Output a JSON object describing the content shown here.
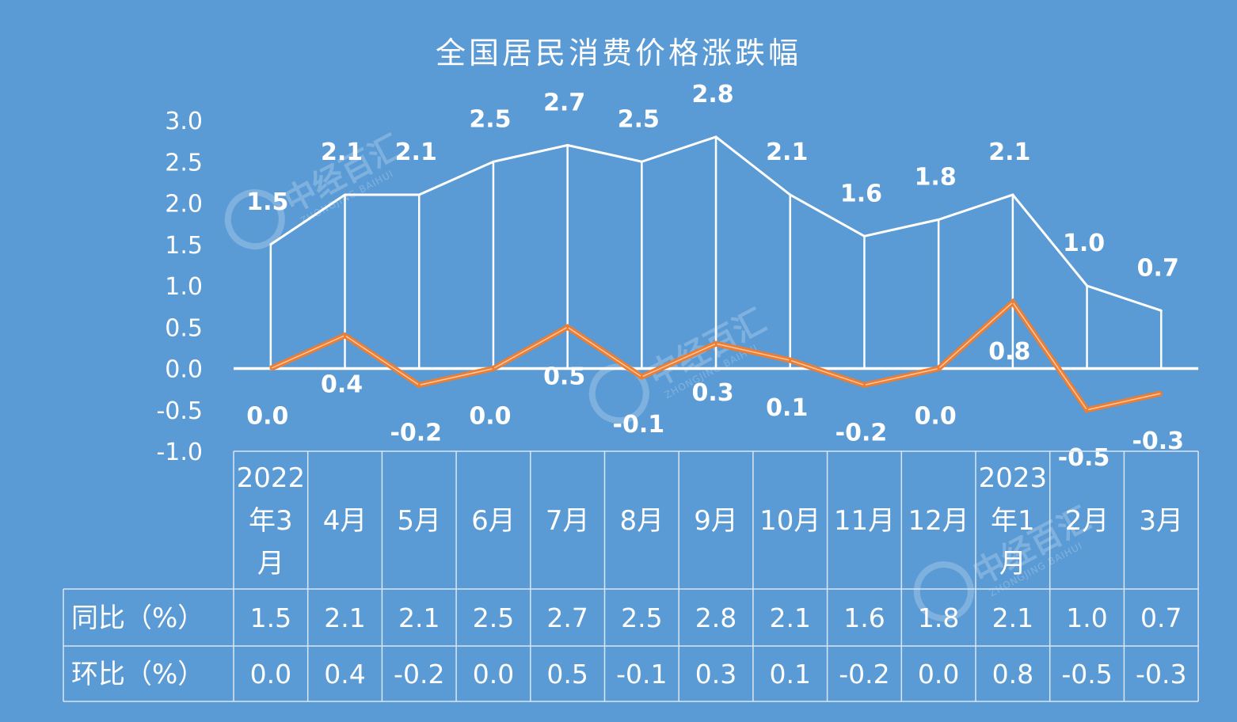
{
  "colors": {
    "background": "#5b9bd5",
    "yoy_line": "#ffffff",
    "mom_line": "#ed7d31",
    "zero_axis": "#ffffff",
    "table_border": "#d9e6f4"
  },
  "watermark": {
    "text": "中经百汇",
    "sub": "ZHONGJING BAIHUI"
  },
  "chart_data": {
    "type": "line",
    "title": "全国居民消费价格涨跌幅",
    "categories": [
      "2022年3月",
      "4月",
      "5月",
      "6月",
      "7月",
      "8月",
      "9月",
      "10月",
      "11月",
      "12月",
      "2023年1月",
      "2月",
      "3月"
    ],
    "category_lines": [
      [
        "2022",
        "年3",
        "月"
      ],
      [
        "4月"
      ],
      [
        "5月"
      ],
      [
        "6月"
      ],
      [
        "7月"
      ],
      [
        "8月"
      ],
      [
        "9月"
      ],
      [
        "10月"
      ],
      [
        "11月"
      ],
      [
        "12月"
      ],
      [
        "2023",
        "年1",
        "月"
      ],
      [
        "2月"
      ],
      [
        "3月"
      ]
    ],
    "series": [
      {
        "name": "同比（%）",
        "values": [
          1.5,
          2.1,
          2.1,
          2.5,
          2.7,
          2.5,
          2.8,
          2.1,
          1.6,
          1.8,
          2.1,
          1.0,
          0.7
        ],
        "labels": [
          "1.5",
          "2.1",
          "2.1",
          "2.5",
          "2.7",
          "2.5",
          "2.8",
          "2.1",
          "1.6",
          "1.8",
          "2.1",
          "1.0",
          "0.7"
        ]
      },
      {
        "name": "环比（%）",
        "values": [
          0.0,
          0.4,
          -0.2,
          0.0,
          0.5,
          -0.1,
          0.3,
          0.1,
          -0.2,
          0.0,
          0.8,
          -0.5,
          -0.3
        ],
        "labels": [
          "0.0",
          "0.4",
          "-0.2",
          "0.0",
          "0.5",
          "-0.1",
          "0.3",
          "0.1",
          "-0.2",
          "0.0",
          "0.8",
          "-0.5",
          "-0.3"
        ]
      }
    ],
    "ylim": [
      -1.0,
      3.0
    ],
    "yticks": [
      "3.0",
      "2.5",
      "2.0",
      "1.5",
      "1.0",
      "0.5",
      "0.0",
      "-0.5",
      "-1.0"
    ],
    "legend": "data-table-below"
  }
}
